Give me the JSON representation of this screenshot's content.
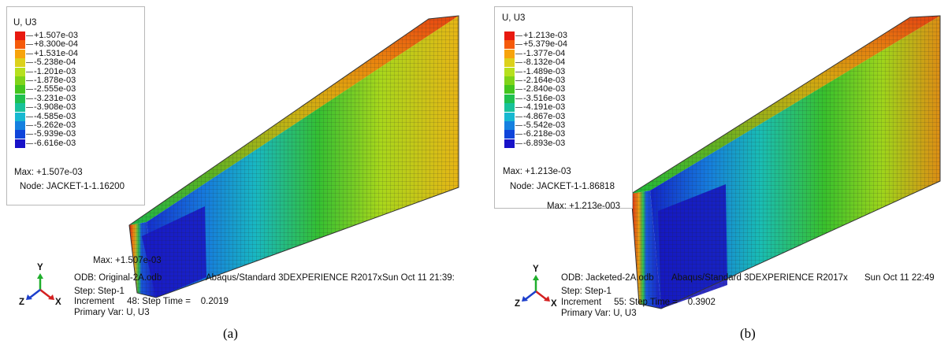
{
  "panels": [
    {
      "id": "a",
      "legend": {
        "title": "U, U3",
        "values": [
          "+1.507e-03",
          "+8.300e-04",
          "+1.531e-04",
          "-5.238e-04",
          "-1.201e-03",
          "-1.878e-03",
          "-2.555e-03",
          "-3.231e-03",
          "-3.908e-03",
          "-4.585e-03",
          "-5.262e-03",
          "-5.939e-03",
          "-6.616e-03"
        ],
        "colors": [
          "#e8190f",
          "#f55a0a",
          "#f7a30c",
          "#dcd11b",
          "#b6e01e",
          "#7fd319",
          "#42c51e",
          "#1fc04e",
          "#18c29a",
          "#17b8d1",
          "#1580e0",
          "#0e44da",
          "#1812c8"
        ],
        "max_label": "Max: +1.507e-03",
        "node_label": "Node: JACKET-1-1.16200"
      },
      "max_annotation": "Max: +1.507e-03",
      "info": {
        "odb": "ODB: Original-2A.odb",
        "solver": "Abaqus/Standard 3DEXPERIENCE R2017x",
        "date": "Sun Oct 11 21:39:",
        "step": "Step: Step-1",
        "increment": "Increment     48: Step Time =    0.2019",
        "primary_var": "Primary Var: U, U3"
      },
      "triad": {
        "y": "Y",
        "z": "Z",
        "x": "X"
      },
      "caption": "(a)"
    },
    {
      "id": "b",
      "legend": {
        "title": "U, U3",
        "values": [
          "+1.213e-03",
          "+5.379e-04",
          "-1.377e-04",
          "-8.132e-04",
          "-1.489e-03",
          "-2.164e-03",
          "-2.840e-03",
          "-3.516e-03",
          "-4.191e-03",
          "-4.867e-03",
          "-5.542e-03",
          "-6.218e-03",
          "-6.893e-03"
        ],
        "colors": [
          "#e8190f",
          "#f55a0a",
          "#f7a30c",
          "#dcd11b",
          "#b6e01e",
          "#7fd319",
          "#42c51e",
          "#1fc04e",
          "#18c29a",
          "#17b8d1",
          "#1580e0",
          "#0e44da",
          "#1812c8"
        ],
        "max_label": "Max: +1.213e-03",
        "node_label": "Node: JACKET-1-1.86818"
      },
      "max_annotation": "Max: +1.213e-003",
      "info": {
        "odb": "ODB: Jacketed-2A.odb",
        "solver": "Abaqus/Standard 3DEXPERIENCE R2017x",
        "date": "Sun Oct 11 22:49",
        "step": "Step: Step-1",
        "increment": "Increment     55: Step Time =    0.3902",
        "primary_var": "Primary Var: U, U3"
      },
      "triad": {
        "y": "Y",
        "z": "Z",
        "x": "X"
      },
      "caption": "(b)"
    }
  ]
}
